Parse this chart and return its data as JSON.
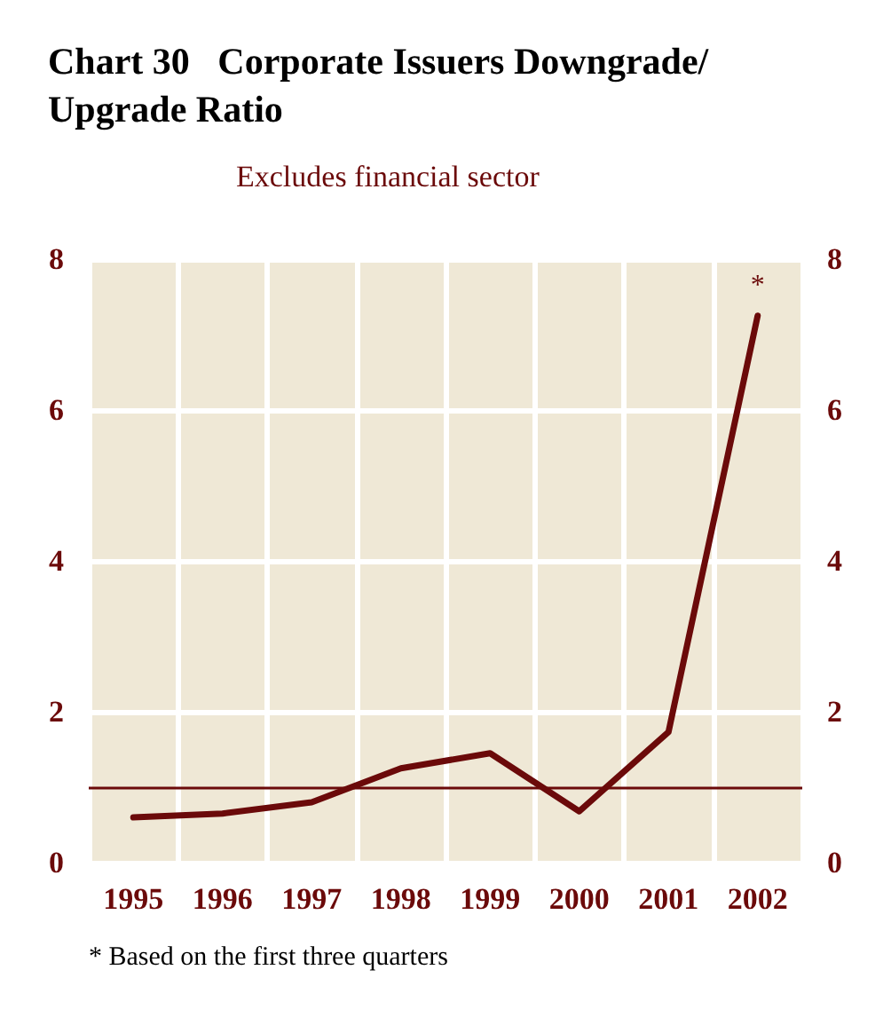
{
  "chart_data": {
    "type": "line",
    "title": "Chart 30   Corporate Issuers Downgrade/Upgrade Ratio",
    "subtitle": "Excludes financial sector",
    "categories": [
      "1995",
      "1996",
      "1997",
      "1998",
      "1999",
      "2000",
      "2001",
      "2002"
    ],
    "series": [
      {
        "color": "#6b0a0a",
        "values": [
          0.6,
          0.65,
          0.8,
          1.25,
          1.45,
          0.68,
          1.73,
          7.25
        ]
      }
    ],
    "ylim": [
      0,
      8
    ],
    "yticks": [
      0,
      2,
      4,
      6,
      8
    ],
    "y2lim": [
      0,
      8
    ],
    "y2ticks": [
      0,
      2,
      4,
      6,
      8
    ],
    "grid": true,
    "marker": "none",
    "line_style": "solid",
    "ref_lines": [
      {
        "axis": "y",
        "value": 1,
        "color": "#6b0a0a"
      }
    ],
    "annotations": [
      {
        "text": "*",
        "x": "2002",
        "y": 7.25
      },
      "* Based on the first three quarters"
    ]
  }
}
